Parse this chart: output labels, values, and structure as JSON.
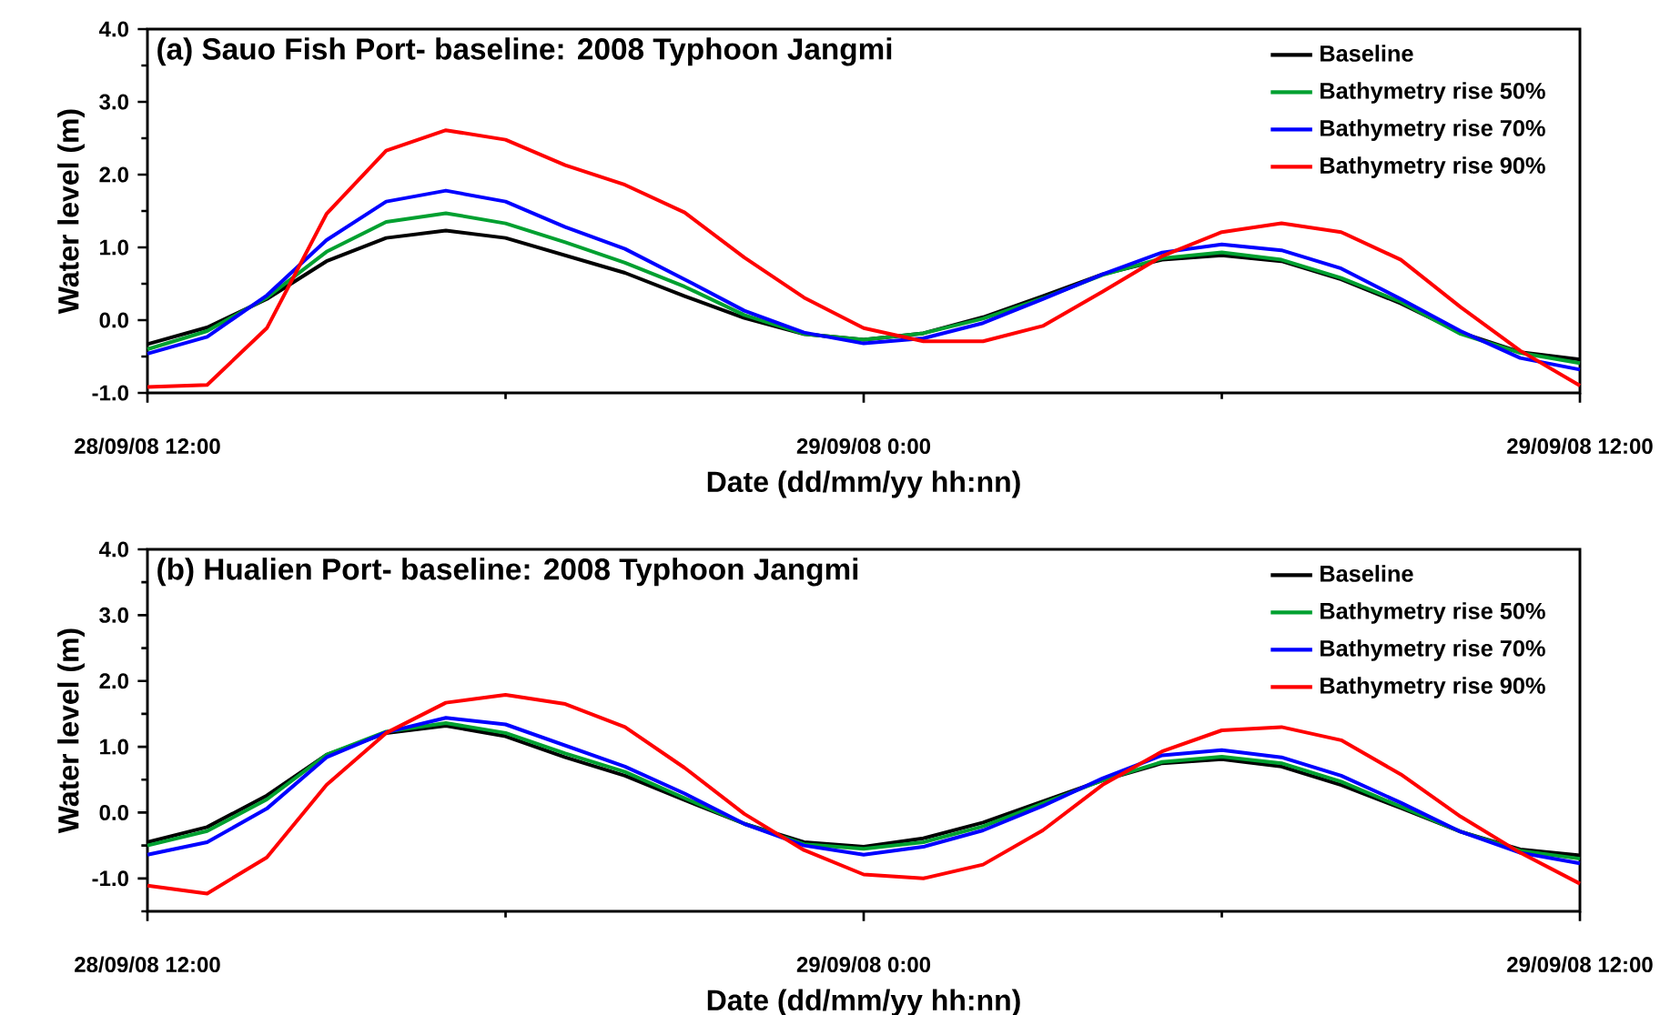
{
  "chart_data": [
    {
      "type": "line",
      "title": "(a) Sauo Fish Port- baseline: 2008 Typhoon Jangmi",
      "xlabel": "Date (dd/mm/yy hh:nn)",
      "ylabel": "Water level (m)",
      "legend": "top right",
      "x": [
        "2008-09-28T12:00",
        "2008-09-28T13:00",
        "2008-09-28T14:00",
        "2008-09-28T15:00",
        "2008-09-28T16:00",
        "2008-09-28T17:00",
        "2008-09-28T18:00",
        "2008-09-28T19:00",
        "2008-09-28T20:00",
        "2008-09-28T21:00",
        "2008-09-28T22:00",
        "2008-09-28T23:00",
        "2008-09-29T00:00",
        "2008-09-29T01:00",
        "2008-09-29T02:00",
        "2008-09-29T03:00",
        "2008-09-29T04:00",
        "2008-09-29T05:00",
        "2008-09-29T06:00",
        "2008-09-29T07:00",
        "2008-09-29T08:00",
        "2008-09-29T09:00",
        "2008-09-29T10:00",
        "2008-09-29T11:00",
        "2008-09-29T12:00"
      ],
      "xlim": [
        "2008-09-28T12:00",
        "2008-09-29T12:00"
      ],
      "xticks": [
        {
          "value": "2008-09-28T12:00",
          "label": "28/09/08 12:00"
        },
        {
          "value": "2008-09-28T18:00",
          "label": null
        },
        {
          "value": "2008-09-29T00:00",
          "label": "29/09/08 0:00"
        },
        {
          "value": "2008-09-29T06:00",
          "label": null
        },
        {
          "value": "2008-09-29T12:00",
          "label": "29/09/08 12:00"
        }
      ],
      "ylim": [
        -1,
        4
      ],
      "yticks": [
        {
          "value": -1,
          "label": "-1.0"
        },
        {
          "value": -0.5,
          "label": null
        },
        {
          "value": 0,
          "label": "0.0"
        },
        {
          "value": 0.5,
          "label": null
        },
        {
          "value": 1,
          "label": "1.0"
        },
        {
          "value": 1.5,
          "label": null
        },
        {
          "value": 2,
          "label": "2.0"
        },
        {
          "value": 2.5,
          "label": null
        },
        {
          "value": 3,
          "label": "3.0"
        },
        {
          "value": 3.5,
          "label": null
        },
        {
          "value": 4,
          "label": "4.0"
        }
      ],
      "series": [
        {
          "name": "Baseline",
          "color": "#000000",
          "values": [
            -0.33,
            -0.1,
            0.29,
            0.81,
            1.13,
            1.23,
            1.13,
            0.89,
            0.65,
            0.33,
            0.03,
            -0.19,
            -0.27,
            -0.18,
            0.04,
            0.33,
            0.63,
            0.83,
            0.89,
            0.81,
            0.56,
            0.23,
            -0.17,
            -0.44,
            -0.54
          ]
        },
        {
          "name": "Bathymetry rise 50%",
          "color": "#00a030",
          "values": [
            -0.4,
            -0.15,
            0.31,
            0.94,
            1.35,
            1.47,
            1.33,
            1.07,
            0.79,
            0.46,
            0.07,
            -0.19,
            -0.27,
            -0.18,
            0.02,
            0.3,
            0.62,
            0.85,
            0.93,
            0.83,
            0.58,
            0.25,
            -0.19,
            -0.45,
            -0.59
          ]
        },
        {
          "name": "Bathymetry rise 70%",
          "color": "#0000ff",
          "values": [
            -0.46,
            -0.23,
            0.34,
            1.1,
            1.63,
            1.78,
            1.63,
            1.28,
            0.98,
            0.56,
            0.13,
            -0.17,
            -0.32,
            -0.25,
            -0.04,
            0.29,
            0.63,
            0.93,
            1.04,
            0.96,
            0.71,
            0.29,
            -0.15,
            -0.52,
            -0.68
          ]
        },
        {
          "name": "Bathymetry rise 90%",
          "color": "#ff0000",
          "values": [
            -0.92,
            -0.89,
            -0.11,
            1.46,
            2.33,
            2.61,
            2.48,
            2.13,
            1.86,
            1.48,
            0.86,
            0.31,
            -0.11,
            -0.29,
            -0.29,
            -0.08,
            0.39,
            0.88,
            1.21,
            1.33,
            1.21,
            0.83,
            0.18,
            -0.42,
            -0.9
          ]
        }
      ]
    },
    {
      "type": "line",
      "title": "(b) Hualien Port- baseline: 2008 Typhoon Jangmi",
      "xlabel": "Date (dd/mm/yy hh:nn)",
      "ylabel": "Water level (m)",
      "legend": "top right",
      "x": [
        "2008-09-28T12:00",
        "2008-09-28T13:00",
        "2008-09-28T14:00",
        "2008-09-28T15:00",
        "2008-09-28T16:00",
        "2008-09-28T17:00",
        "2008-09-28T18:00",
        "2008-09-28T19:00",
        "2008-09-28T20:00",
        "2008-09-28T21:00",
        "2008-09-28T22:00",
        "2008-09-28T23:00",
        "2008-09-29T00:00",
        "2008-09-29T01:00",
        "2008-09-29T02:00",
        "2008-09-29T03:00",
        "2008-09-29T04:00",
        "2008-09-29T05:00",
        "2008-09-29T06:00",
        "2008-09-29T07:00",
        "2008-09-29T08:00",
        "2008-09-29T09:00",
        "2008-09-29T10:00",
        "2008-09-29T11:00",
        "2008-09-29T12:00"
      ],
      "xlim": [
        "2008-09-28T12:00",
        "2008-09-29T12:00"
      ],
      "xticks": [
        {
          "value": "2008-09-28T12:00",
          "label": "28/09/08 12:00"
        },
        {
          "value": "2008-09-28T18:00",
          "label": null
        },
        {
          "value": "2008-09-29T00:00",
          "label": "29/09/08 0:00"
        },
        {
          "value": "2008-09-29T06:00",
          "label": null
        },
        {
          "value": "2008-09-29T12:00",
          "label": "29/09/08 12:00"
        }
      ],
      "ylim": [
        -1.5,
        4
      ],
      "yticks": [
        {
          "value": -1.5,
          "label": null
        },
        {
          "value": -1,
          "label": "-1.0"
        },
        {
          "value": -0.5,
          "label": null
        },
        {
          "value": 0,
          "label": "0.0"
        },
        {
          "value": 0.5,
          "label": null
        },
        {
          "value": 1,
          "label": "1.0"
        },
        {
          "value": 1.5,
          "label": null
        },
        {
          "value": 2,
          "label": "2.0"
        },
        {
          "value": 2.5,
          "label": null
        },
        {
          "value": 3,
          "label": "3.0"
        },
        {
          "value": 3.5,
          "label": null
        },
        {
          "value": 4,
          "label": "4.0"
        }
      ],
      "series": [
        {
          "name": "Baseline",
          "color": "#000000",
          "values": [
            -0.45,
            -0.22,
            0.26,
            0.88,
            1.21,
            1.32,
            1.16,
            0.84,
            0.56,
            0.19,
            -0.17,
            -0.45,
            -0.52,
            -0.39,
            -0.15,
            0.17,
            0.49,
            0.75,
            0.81,
            0.7,
            0.42,
            0.07,
            -0.29,
            -0.56,
            -0.65
          ]
        },
        {
          "name": "Bathymetry rise 50%",
          "color": "#00a030",
          "values": [
            -0.5,
            -0.28,
            0.2,
            0.88,
            1.23,
            1.36,
            1.21,
            0.9,
            0.62,
            0.22,
            -0.17,
            -0.48,
            -0.55,
            -0.45,
            -0.21,
            0.14,
            0.49,
            0.77,
            0.85,
            0.75,
            0.47,
            0.09,
            -0.29,
            -0.58,
            -0.7
          ]
        },
        {
          "name": "Bathymetry rise 70%",
          "color": "#0000ff",
          "values": [
            -0.64,
            -0.45,
            0.06,
            0.84,
            1.22,
            1.44,
            1.34,
            1.02,
            0.7,
            0.29,
            -0.17,
            -0.5,
            -0.64,
            -0.52,
            -0.27,
            0.1,
            0.52,
            0.87,
            0.95,
            0.84,
            0.56,
            0.15,
            -0.29,
            -0.61,
            -0.77
          ]
        },
        {
          "name": "Bathymetry rise 90%",
          "color": "#ff0000",
          "values": [
            -1.11,
            -1.23,
            -0.68,
            0.42,
            1.21,
            1.67,
            1.79,
            1.65,
            1.3,
            0.68,
            -0.02,
            -0.57,
            -0.94,
            -1.0,
            -0.79,
            -0.27,
            0.42,
            0.93,
            1.25,
            1.3,
            1.1,
            0.58,
            -0.06,
            -0.61,
            -1.08
          ]
        }
      ]
    }
  ]
}
